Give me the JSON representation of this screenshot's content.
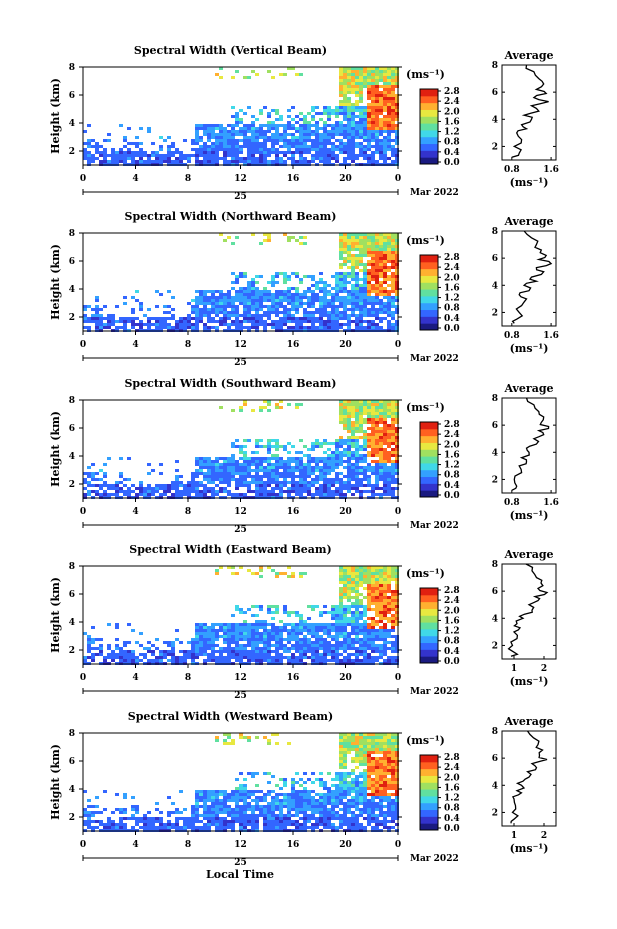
{
  "figure": {
    "xlabel": "Local Time",
    "date_day": "25",
    "date_month": "Mar 2022"
  },
  "colorbar": {
    "unit": "(ms⁻¹)",
    "ticks": [
      "0.0",
      "0.4",
      "0.8",
      "1.2",
      "1.6",
      "2.0",
      "2.4",
      "2.8"
    ],
    "colors": [
      "#1a1a80",
      "#3333cc",
      "#3366ff",
      "#33a0ff",
      "#40d8e8",
      "#60e0a0",
      "#a0e060",
      "#e8e840",
      "#ffb030",
      "#ff6020",
      "#e02010"
    ]
  },
  "chart_data": [
    {
      "type": "heatmap",
      "title": "Spectral Width (Vertical Beam)",
      "ylabel": "Height (km)",
      "x_ticks": [
        "0",
        "4",
        "8",
        "12",
        "16",
        "20",
        "0"
      ],
      "y_ticks": [
        "2",
        "4",
        "6",
        "8"
      ],
      "xlim": [
        0,
        24
      ],
      "ylim": [
        1,
        8
      ],
      "profile": {
        "title": "Average",
        "xlabel": "(ms⁻¹)",
        "x_ticks": [
          "0.8",
          "1.6"
        ],
        "xlim": [
          0.6,
          1.7
        ],
        "y_ticks": [
          "2",
          "4",
          "6",
          "8"
        ],
        "heights": [
          1.2,
          1.5,
          2.0,
          2.5,
          3.0,
          3.3,
          3.6,
          4.0,
          4.3,
          4.6,
          5.0,
          5.3,
          5.6,
          5.9,
          6.2,
          6.6,
          7.0,
          7.5,
          8.0
        ],
        "values": [
          0.8,
          0.95,
          0.85,
          1.0,
          0.9,
          1.1,
          1.0,
          1.2,
          1.05,
          1.35,
          1.2,
          1.55,
          1.25,
          1.5,
          1.3,
          1.45,
          1.35,
          1.25,
          1.1
        ]
      }
    },
    {
      "type": "heatmap",
      "title": "Spectral Width (Northward Beam)",
      "ylabel": "Height (km)",
      "x_ticks": [
        "0",
        "4",
        "8",
        "12",
        "16",
        "20",
        "0"
      ],
      "y_ticks": [
        "2",
        "4",
        "6",
        "8"
      ],
      "xlim": [
        0,
        24
      ],
      "ylim": [
        1,
        8
      ],
      "profile": {
        "title": "Average",
        "xlabel": "(ms⁻¹)",
        "x_ticks": [
          "0.8",
          "1.6"
        ],
        "xlim": [
          0.6,
          1.7
        ],
        "y_ticks": [
          "2",
          "4",
          "6",
          "8"
        ],
        "heights": [
          1.2,
          1.5,
          2.0,
          2.5,
          3.0,
          3.3,
          3.6,
          4.0,
          4.3,
          4.6,
          5.0,
          5.3,
          5.6,
          5.9,
          6.2,
          6.6,
          7.0,
          7.5,
          8.0
        ],
        "values": [
          0.85,
          0.9,
          0.95,
          1.0,
          1.1,
          0.95,
          1.15,
          1.05,
          1.3,
          1.2,
          1.45,
          1.3,
          1.6,
          1.35,
          1.5,
          1.4,
          1.3,
          1.2,
          1.05
        ]
      }
    },
    {
      "type": "heatmap",
      "title": "Spectral Width (Southward Beam)",
      "ylabel": "Height (km)",
      "x_ticks": [
        "0",
        "4",
        "8",
        "12",
        "16",
        "20",
        "0"
      ],
      "y_ticks": [
        "2",
        "4",
        "6",
        "8"
      ],
      "xlim": [
        0,
        24
      ],
      "ylim": [
        1,
        8
      ],
      "profile": {
        "title": "Average",
        "xlabel": "(ms⁻¹)",
        "x_ticks": [
          "0.8",
          "1.6"
        ],
        "xlim": [
          0.6,
          1.7
        ],
        "y_ticks": [
          "2",
          "4",
          "6",
          "8"
        ],
        "heights": [
          1.2,
          1.5,
          2.0,
          2.5,
          3.0,
          3.3,
          3.6,
          4.0,
          4.3,
          4.6,
          5.0,
          5.3,
          5.6,
          5.9,
          6.2,
          6.6,
          7.0,
          7.5,
          8.0
        ],
        "values": [
          0.8,
          0.9,
          0.85,
          1.0,
          0.95,
          1.1,
          1.0,
          1.15,
          1.1,
          1.3,
          1.25,
          1.45,
          1.35,
          1.55,
          1.4,
          1.45,
          1.35,
          1.25,
          1.1
        ]
      }
    },
    {
      "type": "heatmap",
      "title": "Spectral Width (Eastward Beam)",
      "ylabel": "Height (km)",
      "x_ticks": [
        "0",
        "4",
        "8",
        "12",
        "16",
        "20",
        "0"
      ],
      "y_ticks": [
        "2",
        "4",
        "6",
        "8"
      ],
      "xlim": [
        0,
        24
      ],
      "ylim": [
        1,
        8
      ],
      "profile": {
        "title": "Average",
        "xlabel": "(ms⁻¹)",
        "x_ticks": [
          "1",
          "2"
        ],
        "xlim": [
          0.6,
          2.4
        ],
        "y_ticks": [
          "2",
          "4",
          "6",
          "8"
        ],
        "heights": [
          1.2,
          1.5,
          2.0,
          2.5,
          3.0,
          3.3,
          3.6,
          4.0,
          4.3,
          4.6,
          5.0,
          5.3,
          5.6,
          5.9,
          6.2,
          6.6,
          7.0,
          7.5,
          8.0
        ],
        "values": [
          0.9,
          1.0,
          0.95,
          1.1,
          1.0,
          1.2,
          1.1,
          1.3,
          1.35,
          1.6,
          1.5,
          1.8,
          1.7,
          2.1,
          1.8,
          1.9,
          1.75,
          1.6,
          1.4
        ]
      }
    },
    {
      "type": "heatmap",
      "title": "Spectral Width (Westward Beam)",
      "ylabel": "Height (km)",
      "x_ticks": [
        "0",
        "4",
        "8",
        "12",
        "16",
        "20",
        "0"
      ],
      "y_ticks": [
        "2",
        "4",
        "6",
        "8"
      ],
      "xlim": [
        0,
        24
      ],
      "ylim": [
        1,
        8
      ],
      "profile": {
        "title": "Average",
        "xlabel": "(ms⁻¹)",
        "x_ticks": [
          "1",
          "2"
        ],
        "xlim": [
          0.6,
          2.4
        ],
        "y_ticks": [
          "2",
          "4",
          "6",
          "8"
        ],
        "heights": [
          1.2,
          1.5,
          2.0,
          2.5,
          3.0,
          3.3,
          3.6,
          4.0,
          4.3,
          4.6,
          5.0,
          5.3,
          5.6,
          5.9,
          6.2,
          6.6,
          7.0,
          7.5,
          8.0
        ],
        "values": [
          0.9,
          1.0,
          0.95,
          1.05,
          1.0,
          1.15,
          1.1,
          1.25,
          1.3,
          1.5,
          1.45,
          1.75,
          1.6,
          2.1,
          1.85,
          1.95,
          1.8,
          1.65,
          1.45
        ]
      }
    }
  ]
}
